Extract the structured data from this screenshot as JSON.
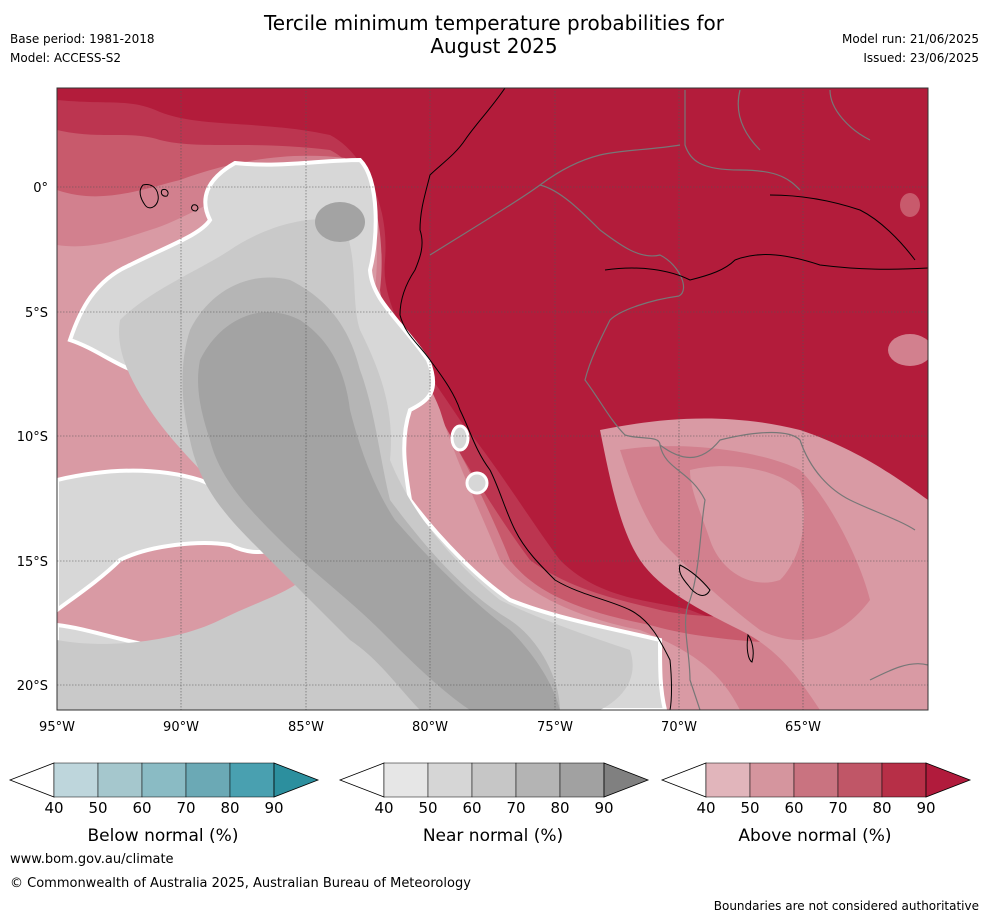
{
  "header": {
    "base_period": "Base period: 1981-2018",
    "model": "Model: ACCESS-S2",
    "title_line1": "Tercile minimum temperature probabilities for",
    "title_line2": "August 2025",
    "model_run": "Model run: 21/06/2025",
    "issued": "Issued: 23/06/2025"
  },
  "map": {
    "lat_ticks": [
      "0°",
      "5°S",
      "10°S",
      "15°S",
      "20°S"
    ],
    "lon_ticks": [
      "95°W",
      "90°W",
      "85°W",
      "80°W",
      "75°W",
      "70°W",
      "65°W"
    ],
    "colors": {
      "ocean_above_strong": "#b31c3b",
      "above_80": "#bc3550",
      "above_70": "#c85a6c",
      "above_60": "#d2808e",
      "above_50": "#d99aa4",
      "near_60": "#c9c9c9",
      "near_70": "#b5b5b5",
      "near_80": "#a3a3a3",
      "near_50": "#d7d7d7"
    }
  },
  "colorbars": [
    {
      "label": "Below normal (%)",
      "ticks": [
        "40",
        "50",
        "60",
        "70",
        "80",
        "90"
      ],
      "colors": [
        "#ffffff",
        "#bed6dc",
        "#a5c7cd",
        "#8abbc4",
        "#6ba9b5",
        "#49a0b0",
        "#2c8f9e"
      ]
    },
    {
      "label": "Near normal (%)",
      "ticks": [
        "40",
        "50",
        "60",
        "70",
        "80",
        "90"
      ],
      "colors": [
        "#ffffff",
        "#e6e6e6",
        "#d6d6d6",
        "#c6c6c6",
        "#b4b4b4",
        "#a1a1a1",
        "#808080"
      ]
    },
    {
      "label": "Above normal (%)",
      "ticks": [
        "40",
        "50",
        "60",
        "70",
        "80",
        "90"
      ],
      "colors": [
        "#ffffff",
        "#e1b5bb",
        "#d5959e",
        "#c97380",
        "#c05667",
        "#b72f47",
        "#b11b3c"
      ]
    }
  ],
  "footer": {
    "url": "www.bom.gov.au/climate",
    "copyright": "© Commonwealth of Australia 2025, Australian Bureau of Meteorology",
    "disclaimer": "Boundaries are not considered authoritative"
  }
}
